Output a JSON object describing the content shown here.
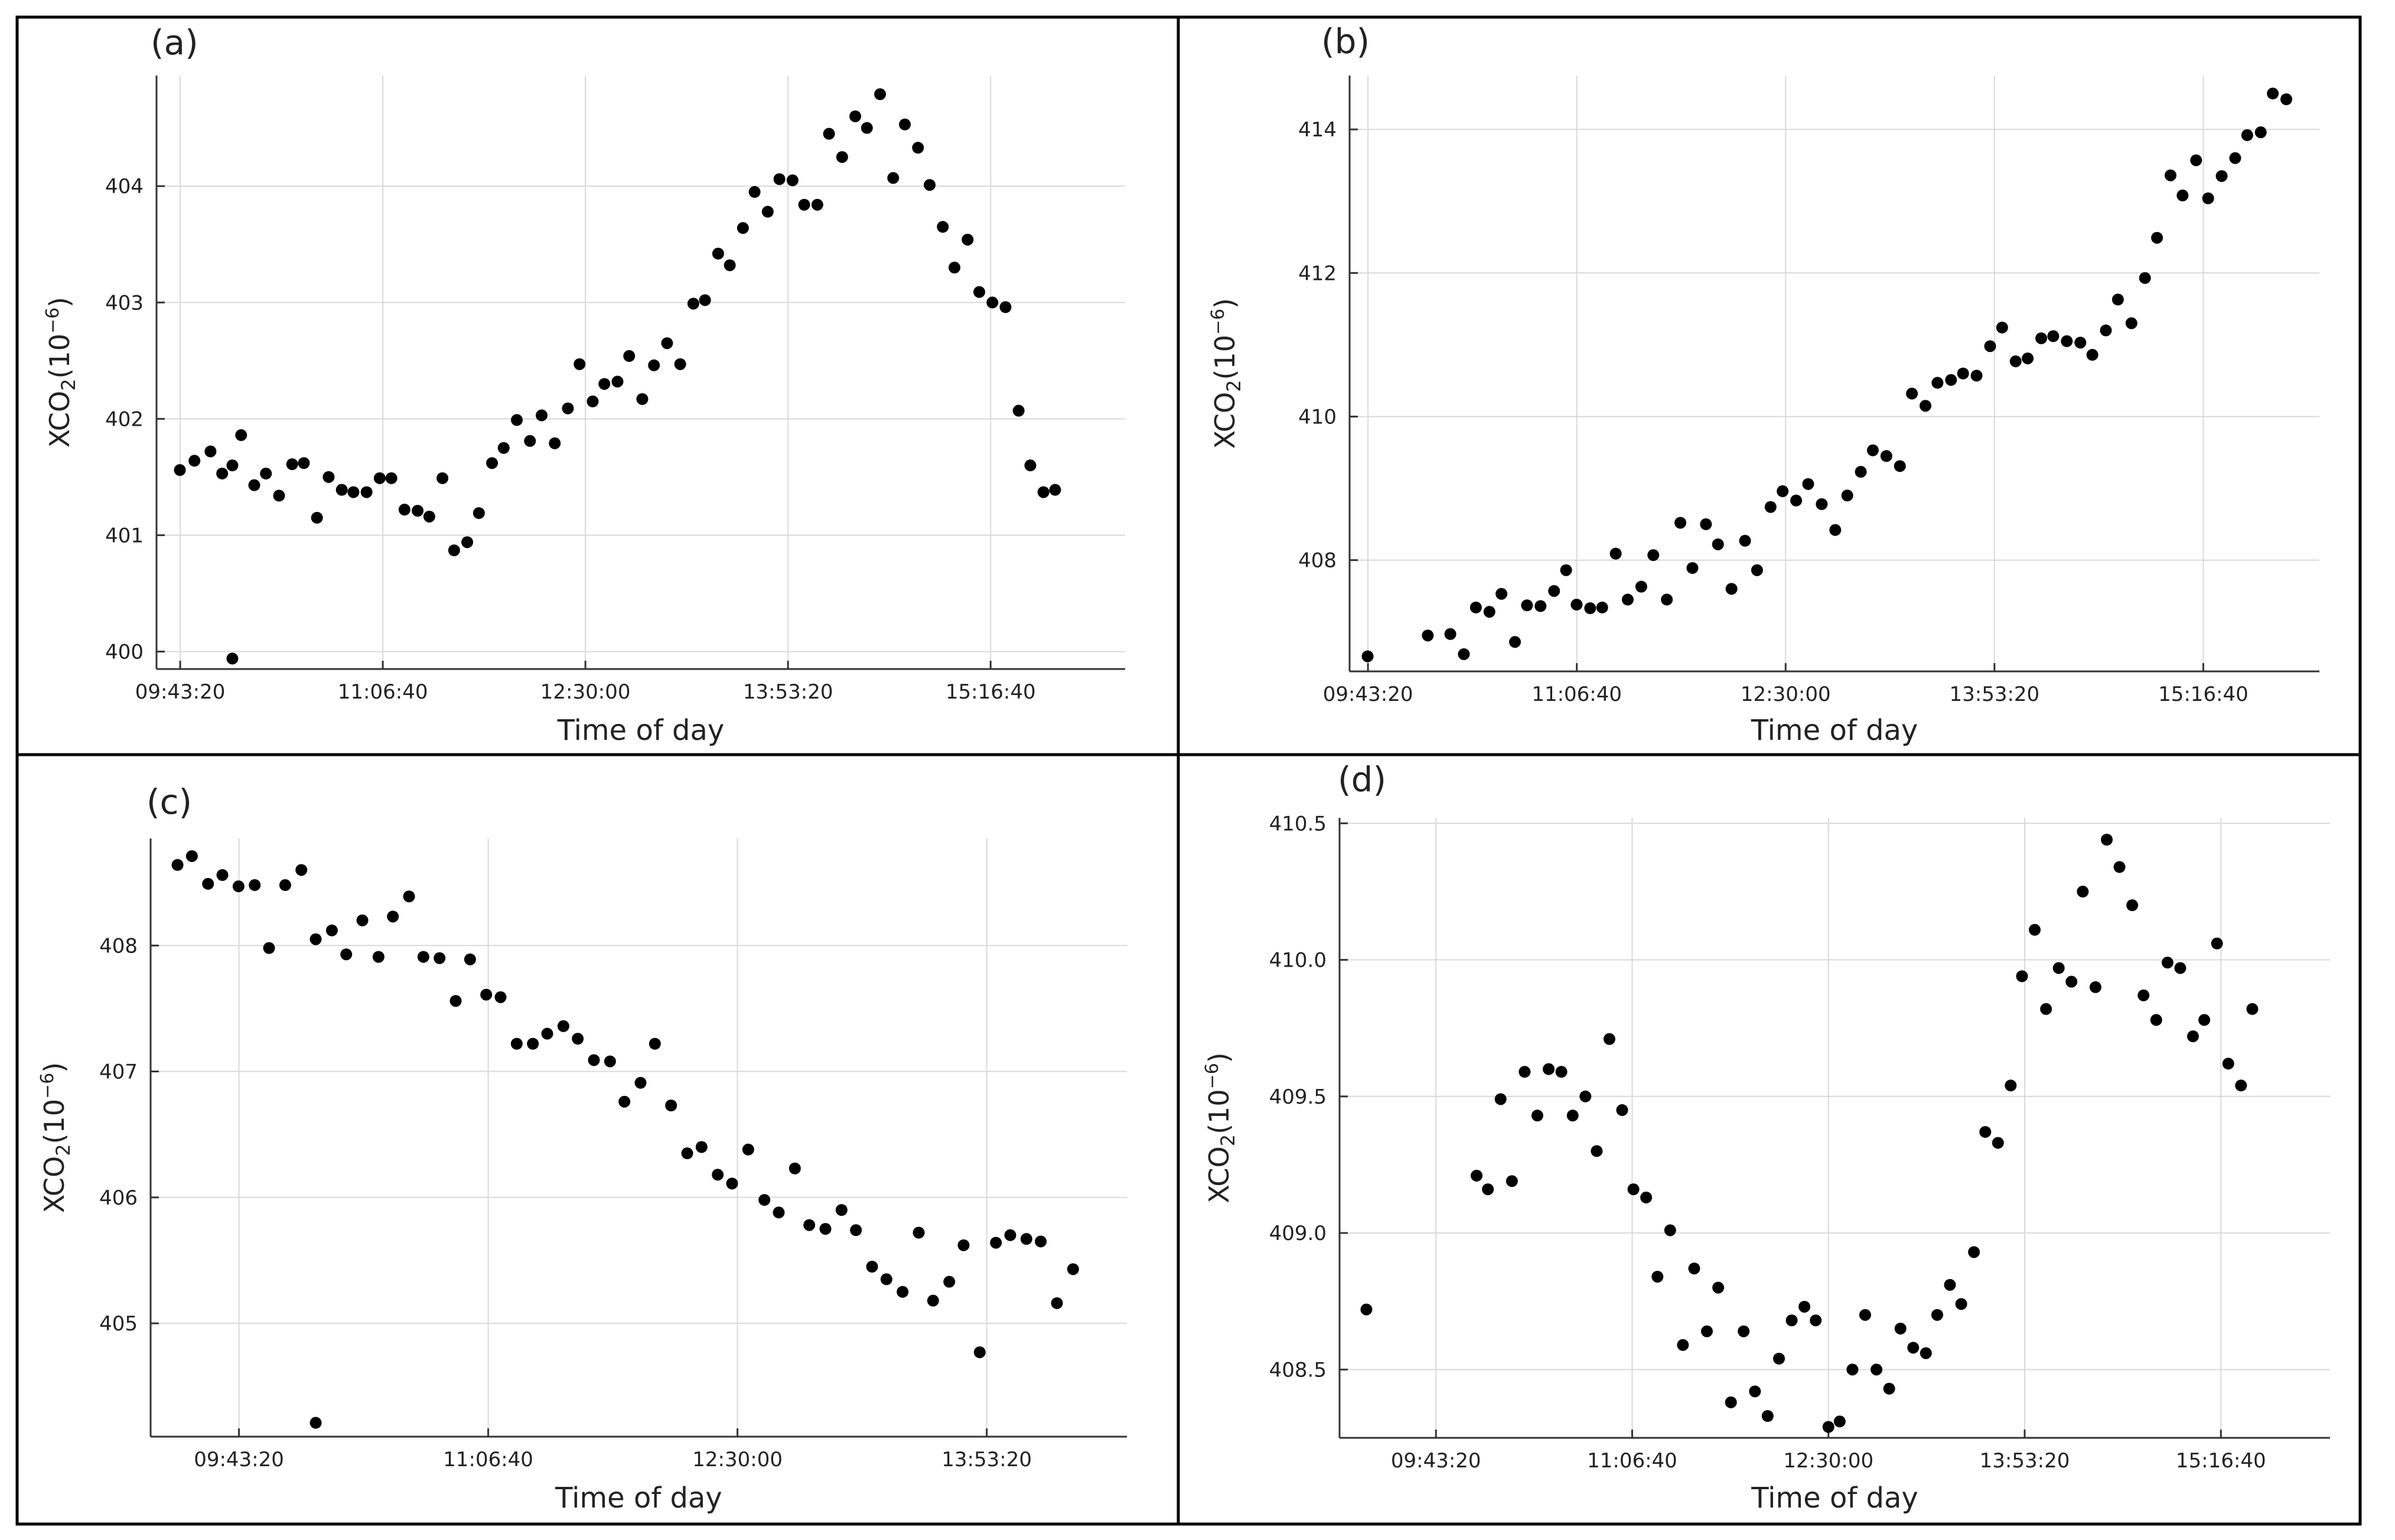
{
  "figure": {
    "x_axis_label": "Time of day",
    "colors": {
      "point": "#000000",
      "grid": "#d9d9d9",
      "axis": "#333333",
      "frame": "#000000",
      "text": "#222222"
    }
  },
  "chart_data": [
    {
      "panel_label": "(a)",
      "type": "scatter",
      "xlabel": "Time of day",
      "ylabel_base": "XCO",
      "ylabel_sub": "2",
      "ylabel_tail": "(10",
      "ylabel_exp": "−6",
      "ylabel_close": ")",
      "x_unit": "hours",
      "xlim": [
        9.56,
        16.2
      ],
      "ylim": [
        399.85,
        404.95
      ],
      "x_ticks": [
        9.7222,
        11.1111,
        12.5,
        13.8889,
        15.2778
      ],
      "x_tick_labels": [
        "09:43:20",
        "11:06:40",
        "12:30:00",
        "13:53:20",
        "15:16:40"
      ],
      "y_ticks": [
        400,
        401,
        402,
        403,
        404
      ],
      "y_tick_labels": [
        "400",
        "401",
        "402",
        "403",
        "404"
      ],
      "points": [
        [
          9.72,
          401.56
        ],
        [
          9.82,
          401.64
        ],
        [
          9.93,
          401.72
        ],
        [
          10.01,
          401.53
        ],
        [
          10.08,
          401.6
        ],
        [
          10.14,
          401.86
        ],
        [
          10.23,
          401.43
        ],
        [
          10.31,
          401.53
        ],
        [
          10.4,
          401.34
        ],
        [
          10.49,
          401.61
        ],
        [
          10.57,
          401.62
        ],
        [
          10.66,
          401.15
        ],
        [
          10.74,
          401.5
        ],
        [
          10.83,
          401.39
        ],
        [
          10.91,
          401.37
        ],
        [
          11.0,
          401.37
        ],
        [
          11.09,
          401.49
        ],
        [
          11.17,
          401.49
        ],
        [
          11.26,
          401.22
        ],
        [
          11.35,
          401.21
        ],
        [
          11.43,
          401.16
        ],
        [
          11.52,
          401.49
        ],
        [
          11.6,
          400.87
        ],
        [
          11.69,
          400.94
        ],
        [
          11.77,
          401.19
        ],
        [
          11.86,
          401.62
        ],
        [
          11.94,
          401.75
        ],
        [
          12.03,
          401.99
        ],
        [
          12.12,
          401.81
        ],
        [
          12.2,
          402.03
        ],
        [
          12.29,
          401.79
        ],
        [
          12.38,
          402.09
        ],
        [
          12.46,
          402.47
        ],
        [
          12.55,
          402.15
        ],
        [
          12.63,
          402.3
        ],
        [
          12.72,
          402.32
        ],
        [
          12.8,
          402.54
        ],
        [
          12.89,
          402.17
        ],
        [
          12.97,
          402.46
        ],
        [
          13.06,
          402.65
        ],
        [
          13.15,
          402.47
        ],
        [
          13.24,
          402.99
        ],
        [
          13.32,
          403.02
        ],
        [
          13.41,
          403.42
        ],
        [
          13.49,
          403.32
        ],
        [
          13.58,
          403.64
        ],
        [
          13.66,
          403.95
        ],
        [
          13.75,
          403.78
        ],
        [
          13.83,
          404.06
        ],
        [
          13.92,
          404.05
        ],
        [
          14.0,
          403.84
        ],
        [
          14.09,
          403.84
        ],
        [
          14.17,
          404.45
        ],
        [
          14.26,
          404.25
        ],
        [
          14.35,
          404.6
        ],
        [
          14.43,
          404.5
        ],
        [
          14.52,
          404.79
        ],
        [
          14.61,
          404.07
        ],
        [
          14.69,
          404.53
        ],
        [
          14.78,
          404.33
        ],
        [
          14.86,
          404.01
        ],
        [
          14.95,
          403.65
        ],
        [
          15.03,
          403.3
        ],
        [
          15.12,
          403.54
        ],
        [
          15.2,
          403.09
        ],
        [
          15.29,
          403.0
        ],
        [
          15.38,
          402.96
        ],
        [
          15.47,
          402.07
        ],
        [
          15.55,
          401.6
        ],
        [
          15.64,
          401.37
        ],
        [
          15.72,
          401.39
        ],
        [
          10.08,
          399.94
        ]
      ]
    },
    {
      "panel_label": "(b)",
      "type": "scatter",
      "xlabel": "Time of day",
      "ylabel_base": "XCO",
      "ylabel_sub": "2",
      "ylabel_tail": "(10",
      "ylabel_exp": "−6",
      "ylabel_close": ")",
      "x_unit": "hours",
      "xlim": [
        9.6,
        16.05
      ],
      "ylim": [
        406.45,
        414.75
      ],
      "x_ticks": [
        9.7222,
        11.1111,
        12.5,
        13.8889,
        15.2778
      ],
      "x_tick_labels": [
        "09:43:20",
        "11:06:40",
        "12:30:00",
        "13:53:20",
        "15:16:40"
      ],
      "y_ticks": [
        408,
        410,
        412,
        414
      ],
      "y_tick_labels": [
        "408",
        "410",
        "412",
        "414"
      ],
      "points": [
        [
          9.72,
          406.66
        ],
        [
          10.12,
          406.95
        ],
        [
          10.27,
          406.97
        ],
        [
          10.36,
          406.69
        ],
        [
          10.44,
          407.34
        ],
        [
          10.53,
          407.28
        ],
        [
          10.61,
          407.53
        ],
        [
          10.7,
          406.86
        ],
        [
          10.78,
          407.37
        ],
        [
          10.87,
          407.36
        ],
        [
          10.96,
          407.57
        ],
        [
          11.04,
          407.86
        ],
        [
          11.11,
          407.38
        ],
        [
          11.2,
          407.33
        ],
        [
          11.28,
          407.34
        ],
        [
          11.37,
          408.09
        ],
        [
          11.45,
          407.45
        ],
        [
          11.54,
          407.63
        ],
        [
          11.62,
          408.07
        ],
        [
          11.71,
          407.45
        ],
        [
          11.8,
          408.52
        ],
        [
          11.88,
          407.89
        ],
        [
          11.97,
          408.5
        ],
        [
          12.05,
          408.22
        ],
        [
          12.14,
          407.6
        ],
        [
          12.23,
          408.27
        ],
        [
          12.31,
          407.86
        ],
        [
          12.4,
          408.74
        ],
        [
          12.48,
          408.96
        ],
        [
          12.57,
          408.83
        ],
        [
          12.65,
          409.06
        ],
        [
          12.74,
          408.78
        ],
        [
          12.83,
          408.42
        ],
        [
          12.91,
          408.9
        ],
        [
          13.0,
          409.23
        ],
        [
          13.08,
          409.53
        ],
        [
          13.17,
          409.45
        ],
        [
          13.26,
          409.31
        ],
        [
          13.34,
          410.32
        ],
        [
          13.43,
          410.15
        ],
        [
          13.51,
          410.47
        ],
        [
          13.6,
          410.51
        ],
        [
          13.68,
          410.6
        ],
        [
          13.77,
          410.57
        ],
        [
          13.86,
          410.98
        ],
        [
          13.94,
          411.24
        ],
        [
          14.03,
          410.77
        ],
        [
          14.11,
          410.81
        ],
        [
          14.2,
          411.09
        ],
        [
          14.28,
          411.12
        ],
        [
          14.37,
          411.05
        ],
        [
          14.46,
          411.03
        ],
        [
          14.54,
          410.86
        ],
        [
          14.63,
          411.2
        ],
        [
          14.71,
          411.63
        ],
        [
          14.8,
          411.3
        ],
        [
          14.89,
          411.93
        ],
        [
          14.97,
          412.49
        ],
        [
          15.06,
          413.36
        ],
        [
          15.14,
          413.08
        ],
        [
          15.23,
          413.57
        ],
        [
          15.31,
          413.04
        ],
        [
          15.4,
          413.35
        ],
        [
          15.49,
          413.6
        ],
        [
          15.57,
          413.92
        ],
        [
          15.66,
          413.96
        ],
        [
          15.74,
          414.5
        ],
        [
          15.83,
          414.42
        ]
      ]
    },
    {
      "panel_label": "(c)",
      "type": "scatter",
      "xlabel": "Time of day",
      "ylabel_base": "XCO",
      "ylabel_sub": "2",
      "ylabel_tail": "(10",
      "ylabel_exp": "−6",
      "ylabel_close": ")",
      "x_unit": "hours",
      "xlim": [
        9.23,
        14.67
      ],
      "ylim": [
        404.1,
        408.85
      ],
      "x_ticks": [
        9.7222,
        11.1111,
        12.5,
        13.8889
      ],
      "x_tick_labels": [
        "09:43:20",
        "11:06:40",
        "12:30:00",
        "13:53:20"
      ],
      "y_ticks": [
        405,
        406,
        407,
        408
      ],
      "y_tick_labels": [
        "405",
        "406",
        "407",
        "408"
      ],
      "points": [
        [
          9.38,
          408.64
        ],
        [
          9.46,
          408.71
        ],
        [
          9.55,
          408.49
        ],
        [
          9.63,
          408.56
        ],
        [
          9.72,
          408.47
        ],
        [
          9.81,
          408.48
        ],
        [
          9.89,
          407.98
        ],
        [
          9.98,
          408.48
        ],
        [
          10.07,
          408.6
        ],
        [
          10.15,
          408.05
        ],
        [
          10.24,
          408.12
        ],
        [
          10.32,
          407.93
        ],
        [
          10.41,
          408.2
        ],
        [
          10.5,
          407.91
        ],
        [
          10.58,
          408.23
        ],
        [
          10.67,
          408.39
        ],
        [
          10.75,
          407.91
        ],
        [
          10.84,
          407.9
        ],
        [
          10.93,
          407.56
        ],
        [
          11.01,
          407.89
        ],
        [
          11.1,
          407.61
        ],
        [
          11.18,
          407.59
        ],
        [
          11.27,
          407.22
        ],
        [
          11.36,
          407.22
        ],
        [
          11.44,
          407.3
        ],
        [
          11.53,
          407.36
        ],
        [
          11.61,
          407.26
        ],
        [
          11.7,
          407.09
        ],
        [
          11.79,
          407.08
        ],
        [
          11.87,
          406.76
        ],
        [
          11.96,
          406.91
        ],
        [
          12.04,
          407.22
        ],
        [
          12.13,
          406.73
        ],
        [
          12.22,
          406.35
        ],
        [
          12.3,
          406.4
        ],
        [
          12.39,
          406.18
        ],
        [
          12.47,
          406.11
        ],
        [
          12.56,
          406.38
        ],
        [
          12.65,
          405.98
        ],
        [
          12.73,
          405.88
        ],
        [
          12.82,
          406.23
        ],
        [
          12.9,
          405.78
        ],
        [
          12.99,
          405.75
        ],
        [
          13.08,
          405.9
        ],
        [
          13.16,
          405.74
        ],
        [
          13.25,
          405.45
        ],
        [
          13.33,
          405.35
        ],
        [
          13.42,
          405.25
        ],
        [
          13.51,
          405.72
        ],
        [
          13.59,
          405.18
        ],
        [
          13.68,
          405.33
        ],
        [
          13.76,
          405.62
        ],
        [
          13.85,
          404.77
        ],
        [
          13.94,
          405.64
        ],
        [
          14.02,
          405.7
        ],
        [
          14.11,
          405.67
        ],
        [
          14.19,
          405.65
        ],
        [
          14.28,
          405.16
        ],
        [
          14.37,
          405.43
        ],
        [
          10.15,
          404.21
        ]
      ]
    },
    {
      "panel_label": "(d)",
      "type": "scatter",
      "xlabel": "Time of day",
      "ylabel_base": "XCO",
      "ylabel_sub": "2",
      "ylabel_tail": "(10",
      "ylabel_exp": "−6",
      "ylabel_close": ")",
      "x_unit": "hours",
      "xlim": [
        9.04,
        16.05
      ],
      "ylim": [
        408.25,
        410.52
      ],
      "x_ticks": [
        9.7222,
        11.1111,
        12.5,
        13.8889,
        15.2778
      ],
      "x_tick_labels": [
        "09:43:20",
        "11:06:40",
        "12:30:00",
        "13:53:20",
        "15:16:40"
      ],
      "y_ticks": [
        408.5,
        409.0,
        409.5,
        410.0,
        410.5
      ],
      "y_tick_labels": [
        "408.5",
        "409.0",
        "409.5",
        "410.0",
        "410.5"
      ],
      "points": [
        [
          9.23,
          408.72
        ],
        [
          10.01,
          409.21
        ],
        [
          10.09,
          409.16
        ],
        [
          10.18,
          409.49
        ],
        [
          10.26,
          409.19
        ],
        [
          10.35,
          409.59
        ],
        [
          10.44,
          409.43
        ],
        [
          10.52,
          409.6
        ],
        [
          10.61,
          409.59
        ],
        [
          10.69,
          409.43
        ],
        [
          10.78,
          409.5
        ],
        [
          10.86,
          409.3
        ],
        [
          10.95,
          409.71
        ],
        [
          11.04,
          409.45
        ],
        [
          11.12,
          409.16
        ],
        [
          11.21,
          409.13
        ],
        [
          11.29,
          408.84
        ],
        [
          11.38,
          409.01
        ],
        [
          11.47,
          408.59
        ],
        [
          11.55,
          408.87
        ],
        [
          11.64,
          408.64
        ],
        [
          11.72,
          408.8
        ],
        [
          11.81,
          408.38
        ],
        [
          11.9,
          408.64
        ],
        [
          11.98,
          408.42
        ],
        [
          12.07,
          408.33
        ],
        [
          12.15,
          408.54
        ],
        [
          12.24,
          408.68
        ],
        [
          12.33,
          408.73
        ],
        [
          12.41,
          408.68
        ],
        [
          12.5,
          408.29
        ],
        [
          12.58,
          408.31
        ],
        [
          12.67,
          408.5
        ],
        [
          12.76,
          408.7
        ],
        [
          12.84,
          408.5
        ],
        [
          12.93,
          408.43
        ],
        [
          13.01,
          408.65
        ],
        [
          13.1,
          408.58
        ],
        [
          13.19,
          408.56
        ],
        [
          13.27,
          408.7
        ],
        [
          13.36,
          408.81
        ],
        [
          13.44,
          408.74
        ],
        [
          13.53,
          408.93
        ],
        [
          13.61,
          409.37
        ],
        [
          13.7,
          409.33
        ],
        [
          13.79,
          409.54
        ],
        [
          13.87,
          409.94
        ],
        [
          13.96,
          410.11
        ],
        [
          14.04,
          409.82
        ],
        [
          14.13,
          409.97
        ],
        [
          14.22,
          409.92
        ],
        [
          14.3,
          410.25
        ],
        [
          14.39,
          409.9
        ],
        [
          14.47,
          410.44
        ],
        [
          14.56,
          410.34
        ],
        [
          14.65,
          410.2
        ],
        [
          14.73,
          409.87
        ],
        [
          14.82,
          409.78
        ],
        [
          14.9,
          409.99
        ],
        [
          14.99,
          409.97
        ],
        [
          15.08,
          409.72
        ],
        [
          15.16,
          409.78
        ],
        [
          15.25,
          410.06
        ],
        [
          15.33,
          409.62
        ],
        [
          15.42,
          409.54
        ],
        [
          15.5,
          409.82
        ]
      ]
    }
  ]
}
